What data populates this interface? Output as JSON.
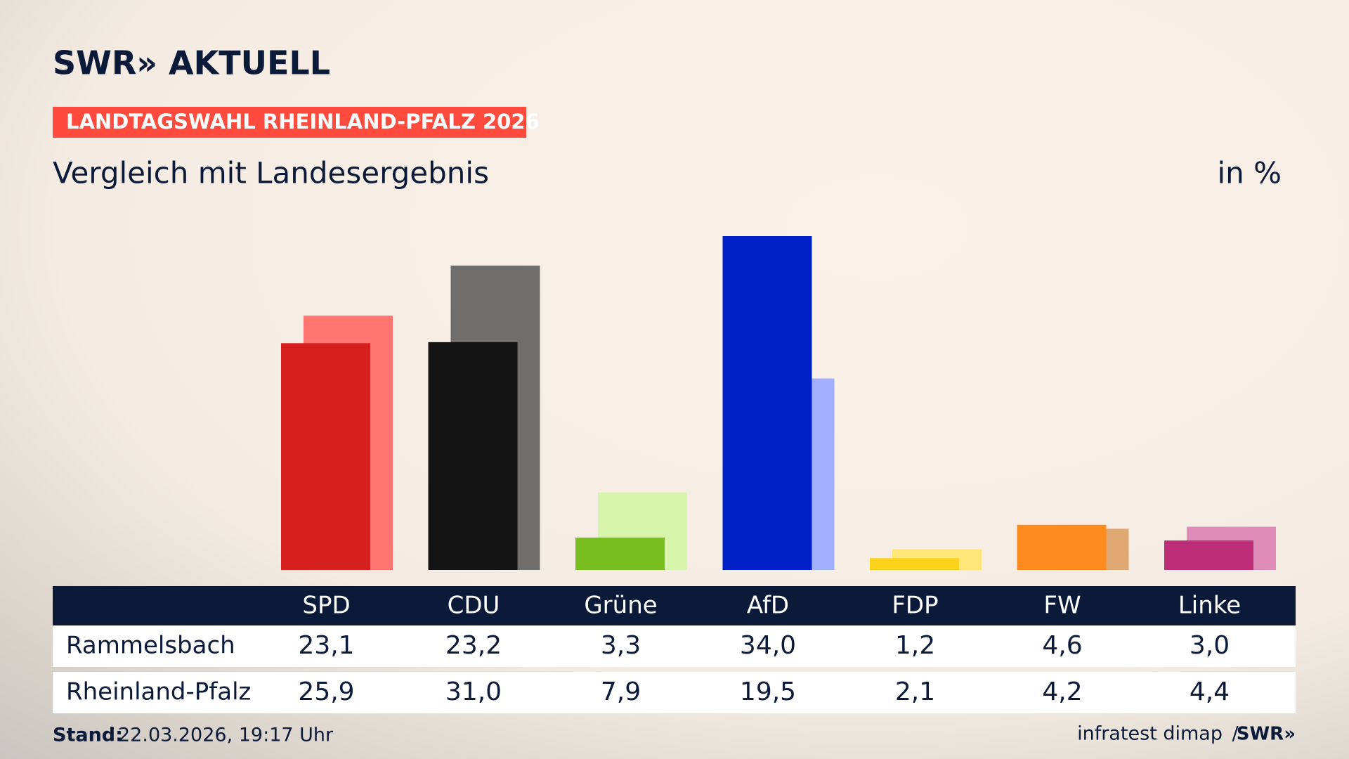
{
  "logo": "SWR» AKTUELL",
  "badge": "LANDTAGSWAHL RHEINLAND-PFALZ 2026",
  "chart_data": {
    "type": "bar",
    "subtitle": "Vergleich mit Landesergebnis",
    "unit": "in %",
    "categories": [
      "SPD",
      "CDU",
      "Grüne",
      "AfD",
      "FDP",
      "FW",
      "Linke"
    ],
    "series": [
      {
        "name": "Rammelsbach",
        "colors": [
          "#d61f1f",
          "#141414",
          "#78be1e",
          "#0020c8",
          "#ffd21e",
          "#ff8c1e",
          "#be2d78"
        ],
        "values": [
          23.1,
          23.2,
          3.3,
          34.0,
          1.2,
          4.6,
          3.0
        ],
        "value_labels": [
          "23,1",
          "23,2",
          "3,3",
          "34,0",
          "1,2",
          "4,6",
          "3,0"
        ]
      },
      {
        "name": "Rheinland-Pfalz",
        "colors": [
          "#ff7570",
          "#706e6c",
          "#d6f5aa",
          "#a0b0ff",
          "#ffe678",
          "#e0a872",
          "#e08cb8"
        ],
        "values": [
          25.9,
          31.0,
          7.9,
          19.5,
          2.1,
          4.2,
          4.4
        ],
        "value_labels": [
          "25,9",
          "31,0",
          "7,9",
          "19,5",
          "2,1",
          "4,2",
          "4,4"
        ]
      }
    ]
  },
  "footer": {
    "stand_label": "Stand:",
    "stand": "22.03.2026, 19:17 Uhr",
    "source": "infratest dimap",
    "separator": "/",
    "brand": "SWR»"
  }
}
